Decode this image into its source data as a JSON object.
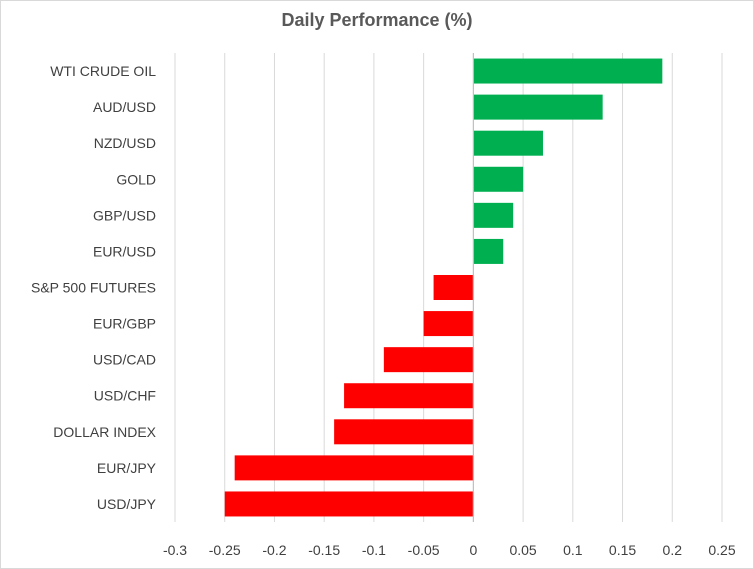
{
  "chart_data": {
    "type": "bar",
    "orientation": "horizontal",
    "title": "Daily Performance (%)",
    "xlabel": "",
    "ylabel": "",
    "categories": [
      "WTI CRUDE OIL",
      "AUD/USD",
      "NZD/USD",
      "GOLD",
      "GBP/USD",
      "EUR/USD",
      "S&P 500 FUTURES",
      "EUR/GBP",
      "USD/CAD",
      "USD/CHF",
      "DOLLAR INDEX",
      "EUR/JPY",
      "USD/JPY"
    ],
    "values": [
      0.19,
      0.13,
      0.07,
      0.05,
      0.04,
      0.03,
      -0.04,
      -0.05,
      -0.09,
      -0.13,
      -0.14,
      -0.24,
      -0.25
    ],
    "xlim": [
      -0.3,
      0.25
    ],
    "xticks": [
      "-0.3",
      "-0.25",
      "-0.2",
      "-0.15",
      "-0.1",
      "-0.05",
      "0",
      "0.05",
      "0.1",
      "0.15",
      "0.2",
      "0.25"
    ],
    "grid": true,
    "legend": "none",
    "colors": {
      "positive": "#00B050",
      "negative": "#FF0000",
      "grid": "#d9d9d9",
      "axis": "#bfbfbf"
    }
  }
}
